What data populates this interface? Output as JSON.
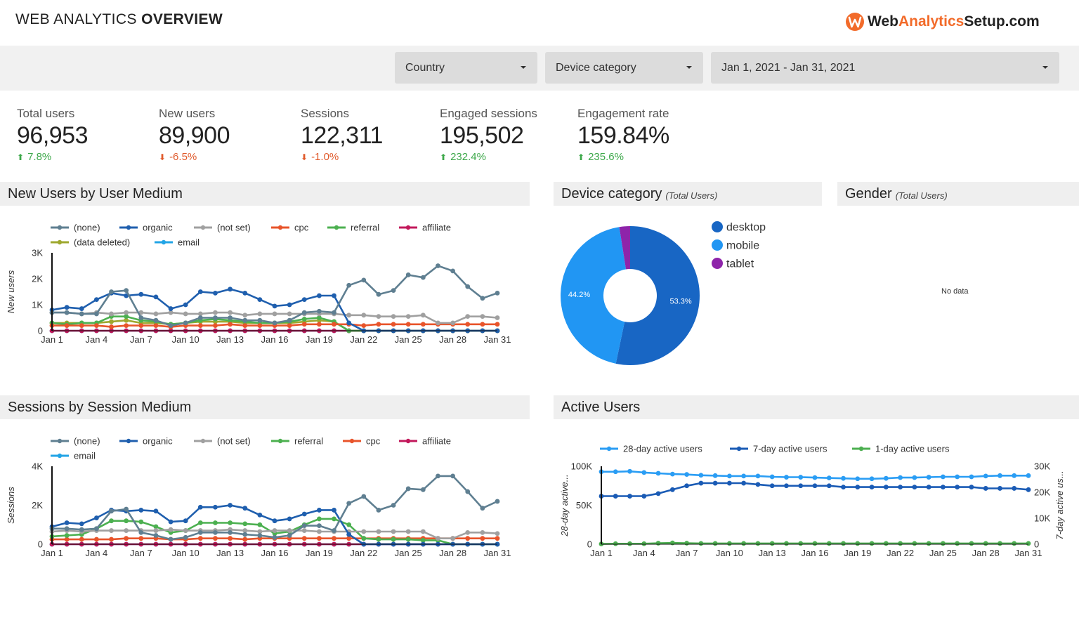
{
  "header": {
    "title_light": "WEB ANALYTICS",
    "title_bold": "OVERVIEW",
    "logo_part1": "Web",
    "logo_part2": "Analytics",
    "logo_part3": "Setup.com"
  },
  "filters": {
    "country": "Country",
    "device": "Device category",
    "date_range": "Jan 1, 2021 - Jan 31, 2021"
  },
  "kpis": [
    {
      "label": "Total users",
      "value": "96,953",
      "delta": "7.8%",
      "direction": "up"
    },
    {
      "label": "New users",
      "value": "89,900",
      "delta": "-6.5%",
      "direction": "down"
    },
    {
      "label": "Sessions",
      "value": "122,311",
      "delta": "-1.0%",
      "direction": "down"
    },
    {
      "label": "Engaged sessions",
      "value": "195,502",
      "delta": "232.4%",
      "direction": "up"
    },
    {
      "label": "Engagement rate",
      "value": "159.84%",
      "delta": "235.6%",
      "direction": "up"
    }
  ],
  "panels": {
    "new_users": "New Users by User Medium",
    "device": "Device category",
    "device_sub": "(Total Users)",
    "gender": "Gender",
    "gender_sub": "(Total Users)",
    "gender_empty": "No data",
    "sessions": "Sessions by Session Medium",
    "active": "Active Users"
  },
  "colors": {
    "none": "#5f7f91",
    "organic": "#1f5fae",
    "not_set": "#a0a0a0",
    "cpc": "#e8542a",
    "referral": "#4cb050",
    "affiliate": "#c2185b",
    "data_deleted": "#9ea82f",
    "email": "#22a4e6",
    "desktop": "#1866c4",
    "mobile": "#2196f3",
    "tablet": "#8e24aa",
    "active28": "#2a9df4",
    "active7": "#1a5bb5",
    "active1": "#4caf50"
  },
  "chart_data": [
    {
      "id": "new_users",
      "type": "line",
      "title": "New Users by User Medium",
      "ylabel": "New users",
      "ylim": [
        0,
        3000
      ],
      "yticks": [
        0,
        1000,
        2000,
        3000
      ],
      "ytick_labels": [
        "0",
        "1K",
        "2K",
        "3K"
      ],
      "x": [
        "Jan 1",
        "Jan 2",
        "Jan 3",
        "Jan 4",
        "Jan 5",
        "Jan 6",
        "Jan 7",
        "Jan 8",
        "Jan 9",
        "Jan 10",
        "Jan 11",
        "Jan 12",
        "Jan 13",
        "Jan 14",
        "Jan 15",
        "Jan 16",
        "Jan 17",
        "Jan 18",
        "Jan 19",
        "Jan 20",
        "Jan 21",
        "Jan 22",
        "Jan 23",
        "Jan 24",
        "Jan 25",
        "Jan 26",
        "Jan 27",
        "Jan 28",
        "Jan 29",
        "Jan 30",
        "Jan 31"
      ],
      "xtick_labels": [
        "Jan 1",
        "Jan 4",
        "Jan 7",
        "Jan 10",
        "Jan 13",
        "Jan 16",
        "Jan 19",
        "Jan 22",
        "Jan 25",
        "Jan 28",
        "Jan 31"
      ],
      "series": [
        {
          "name": "(none)",
          "color_key": "none",
          "values": [
            700,
            700,
            650,
            650,
            1500,
            1550,
            500,
            400,
            200,
            300,
            500,
            500,
            500,
            400,
            400,
            300,
            400,
            700,
            750,
            700,
            1750,
            1950,
            1400,
            1550,
            2150,
            2050,
            2500,
            2300,
            1700,
            1250,
            1450
          ]
        },
        {
          "name": "organic",
          "color_key": "organic",
          "values": [
            800,
            900,
            850,
            1200,
            1450,
            1350,
            1400,
            1300,
            850,
            1000,
            1500,
            1450,
            1600,
            1450,
            1200,
            950,
            1000,
            1200,
            1350,
            1350,
            300,
            0,
            0,
            0,
            0,
            0,
            0,
            0,
            0,
            0,
            0
          ]
        },
        {
          "name": "(not set)",
          "color_key": "not_set",
          "values": [
            700,
            700,
            650,
            700,
            650,
            700,
            700,
            650,
            700,
            650,
            650,
            700,
            700,
            600,
            650,
            650,
            650,
            650,
            650,
            650,
            600,
            600,
            550,
            550,
            550,
            600,
            300,
            300,
            550,
            550,
            500
          ]
        },
        {
          "name": "cpc",
          "color_key": "cpc",
          "values": [
            200,
            200,
            200,
            200,
            150,
            200,
            200,
            200,
            150,
            200,
            200,
            200,
            250,
            200,
            200,
            200,
            200,
            250,
            250,
            250,
            250,
            200,
            250,
            250,
            250,
            250,
            250,
            250,
            250,
            250,
            250
          ]
        },
        {
          "name": "referral",
          "color_key": "referral",
          "values": [
            300,
            250,
            300,
            300,
            550,
            550,
            400,
            350,
            250,
            300,
            400,
            450,
            400,
            350,
            300,
            300,
            350,
            450,
            500,
            350,
            0,
            0,
            0,
            0,
            0,
            0,
            0,
            0,
            0,
            0,
            0
          ]
        },
        {
          "name": "affiliate",
          "color_key": "affiliate",
          "values": [
            0,
            0,
            0,
            0,
            0,
            0,
            0,
            0,
            0,
            0,
            0,
            0,
            0,
            0,
            0,
            0,
            0,
            0,
            0,
            0,
            0,
            0,
            0,
            0,
            0,
            0,
            0,
            0,
            0,
            0,
            0
          ]
        },
        {
          "name": "(data deleted)",
          "color_key": "data_deleted",
          "values": [
            300,
            300,
            300,
            300,
            350,
            400,
            300,
            300,
            250,
            300,
            350,
            350,
            350,
            300,
            300,
            300,
            300,
            350,
            400,
            350,
            0,
            0,
            0,
            0,
            0,
            0,
            0,
            0,
            0,
            0,
            0
          ]
        },
        {
          "name": "email",
          "color_key": "email",
          "values": [
            0,
            0,
            0,
            0,
            0,
            0,
            0,
            0,
            0,
            0,
            0,
            0,
            0,
            0,
            0,
            0,
            0,
            0,
            0,
            0,
            0,
            0,
            0,
            0,
            0,
            0,
            0,
            0,
            0,
            0,
            0
          ]
        }
      ]
    },
    {
      "id": "device",
      "type": "pie",
      "title": "Device category",
      "series": [
        {
          "name": "desktop",
          "color_key": "desktop",
          "value": 53.3,
          "label": "53.3%"
        },
        {
          "name": "mobile",
          "color_key": "mobile",
          "value": 44.2,
          "label": "44.2%"
        },
        {
          "name": "tablet",
          "color_key": "tablet",
          "value": 2.5,
          "label": ""
        }
      ]
    },
    {
      "id": "sessions",
      "type": "line",
      "title": "Sessions by Session Medium",
      "ylabel": "Sessions",
      "ylim": [
        0,
        4000
      ],
      "yticks": [
        0,
        2000,
        4000
      ],
      "ytick_labels": [
        "0",
        "2K",
        "4K"
      ],
      "x": [
        "Jan 1",
        "Jan 2",
        "Jan 3",
        "Jan 4",
        "Jan 5",
        "Jan 6",
        "Jan 7",
        "Jan 8",
        "Jan 9",
        "Jan 10",
        "Jan 11",
        "Jan 12",
        "Jan 13",
        "Jan 14",
        "Jan 15",
        "Jan 16",
        "Jan 17",
        "Jan 18",
        "Jan 19",
        "Jan 20",
        "Jan 21",
        "Jan 22",
        "Jan 23",
        "Jan 24",
        "Jan 25",
        "Jan 26",
        "Jan 27",
        "Jan 28",
        "Jan 29",
        "Jan 30",
        "Jan 31"
      ],
      "xtick_labels": [
        "Jan 1",
        "Jan 4",
        "Jan 7",
        "Jan 10",
        "Jan 13",
        "Jan 16",
        "Jan 19",
        "Jan 22",
        "Jan 25",
        "Jan 28",
        "Jan 31"
      ],
      "series": [
        {
          "name": "(none)",
          "color_key": "none",
          "values": [
            800,
            800,
            750,
            800,
            1700,
            1800,
            600,
            450,
            250,
            350,
            600,
            600,
            600,
            500,
            450,
            350,
            450,
            950,
            950,
            700,
            2100,
            2450,
            1750,
            2000,
            2850,
            2800,
            3500,
            3500,
            2700,
            1850,
            2200
          ]
        },
        {
          "name": "organic",
          "color_key": "organic",
          "values": [
            900,
            1100,
            1050,
            1350,
            1750,
            1700,
            1750,
            1700,
            1150,
            1200,
            1900,
            1900,
            2000,
            1850,
            1500,
            1200,
            1300,
            1550,
            1750,
            1750,
            500,
            0,
            0,
            0,
            0,
            0,
            0,
            0,
            0,
            0,
            0
          ]
        },
        {
          "name": "(not set)",
          "color_key": "not_set",
          "values": [
            650,
            700,
            650,
            700,
            700,
            700,
            700,
            700,
            750,
            700,
            700,
            700,
            750,
            700,
            650,
            700,
            700,
            700,
            650,
            650,
            650,
            650,
            650,
            650,
            650,
            650,
            300,
            300,
            600,
            600,
            550
          ]
        },
        {
          "name": "referral",
          "color_key": "referral",
          "values": [
            400,
            450,
            500,
            800,
            1200,
            1200,
            1150,
            900,
            600,
            700,
            1100,
            1100,
            1100,
            1050,
            1000,
            550,
            650,
            1000,
            1300,
            1300,
            1000,
            300,
            250,
            250,
            250,
            200,
            200,
            0,
            0,
            0,
            0
          ]
        },
        {
          "name": "cpc",
          "color_key": "cpc",
          "values": [
            250,
            250,
            250,
            250,
            250,
            300,
            300,
            300,
            250,
            250,
            300,
            300,
            300,
            250,
            300,
            300,
            300,
            300,
            300,
            300,
            300,
            300,
            300,
            300,
            300,
            300,
            300,
            300,
            300,
            300,
            300
          ]
        },
        {
          "name": "affiliate",
          "color_key": "affiliate",
          "values": [
            0,
            0,
            0,
            0,
            0,
            0,
            0,
            0,
            0,
            0,
            0,
            0,
            0,
            0,
            0,
            0,
            0,
            0,
            0,
            0,
            0,
            0,
            0,
            0,
            0,
            0,
            0,
            0,
            0,
            0,
            0
          ]
        },
        {
          "name": "email",
          "color_key": "email",
          "values": [
            0,
            0,
            0,
            0,
            0,
            0,
            0,
            0,
            0,
            0,
            0,
            0,
            0,
            0,
            0,
            0,
            0,
            0,
            0,
            0,
            0,
            0,
            0,
            0,
            0,
            0,
            0,
            0,
            0,
            0,
            0
          ]
        }
      ]
    },
    {
      "id": "active",
      "type": "line",
      "title": "Active Users",
      "ylabel": "28-day active...",
      "ylabel_right": "7-day active us...",
      "ylim": [
        0,
        100000
      ],
      "yticks": [
        0,
        50000,
        100000
      ],
      "ytick_labels": [
        "0",
        "50K",
        "100K"
      ],
      "ylim_right": [
        0,
        30000
      ],
      "yticks_right": [
        0,
        10000,
        20000,
        30000
      ],
      "ytick_labels_right": [
        "0",
        "10K",
        "20K",
        "30K"
      ],
      "x": [
        "Jan 1",
        "Jan 2",
        "Jan 3",
        "Jan 4",
        "Jan 5",
        "Jan 6",
        "Jan 7",
        "Jan 8",
        "Jan 9",
        "Jan 10",
        "Jan 11",
        "Jan 12",
        "Jan 13",
        "Jan 14",
        "Jan 15",
        "Jan 16",
        "Jan 17",
        "Jan 18",
        "Jan 19",
        "Jan 20",
        "Jan 21",
        "Jan 22",
        "Jan 23",
        "Jan 24",
        "Jan 25",
        "Jan 26",
        "Jan 27",
        "Jan 28",
        "Jan 29",
        "Jan 30",
        "Jan 31"
      ],
      "xtick_labels": [
        "Jan 1",
        "Jan 4",
        "Jan 7",
        "Jan 10",
        "Jan 13",
        "Jan 16",
        "Jan 19",
        "Jan 22",
        "Jan 25",
        "Jan 28",
        "Jan 31"
      ],
      "series": [
        {
          "name": "28-day active users",
          "color_key": "active28",
          "axis": "left",
          "values": [
            93000,
            93000,
            93500,
            92000,
            91000,
            90000,
            89500,
            88500,
            88000,
            87500,
            87500,
            87500,
            86500,
            86000,
            86000,
            85500,
            85000,
            84500,
            84000,
            84000,
            84500,
            85500,
            85500,
            86000,
            86500,
            86500,
            86500,
            87500,
            88000,
            88000,
            88000
          ]
        },
        {
          "name": "7-day active users",
          "color_key": "active7",
          "axis": "right",
          "values": [
            18500,
            18500,
            18500,
            18500,
            19500,
            21000,
            22500,
            23500,
            23500,
            23500,
            23500,
            23000,
            22500,
            22500,
            22500,
            22500,
            22500,
            22000,
            22000,
            22000,
            22000,
            22000,
            22000,
            22000,
            22000,
            22000,
            22000,
            21500,
            21500,
            21500,
            21000
          ]
        },
        {
          "name": "1-day active users",
          "color_key": "active1",
          "axis": "right",
          "values": [
            100,
            200,
            200,
            200,
            400,
            500,
            400,
            300,
            300,
            300,
            300,
            300,
            300,
            300,
            300,
            300,
            300,
            300,
            300,
            300,
            300,
            300,
            300,
            300,
            300,
            300,
            300,
            300,
            300,
            300,
            300
          ]
        }
      ]
    }
  ]
}
